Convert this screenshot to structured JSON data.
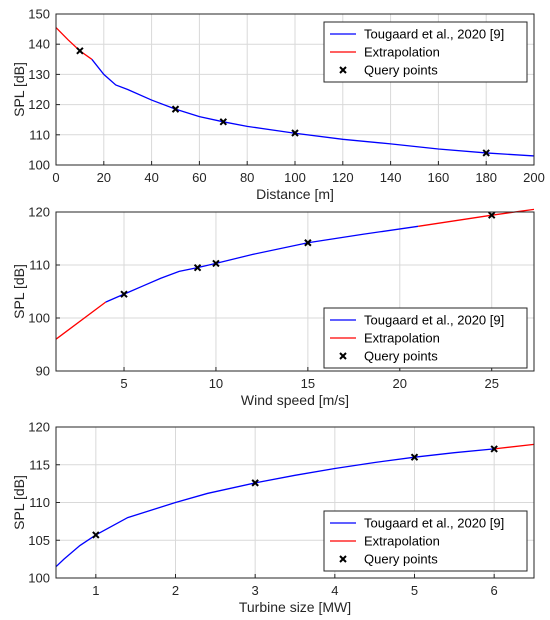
{
  "legend_labels": {
    "model": "Tougaard et al., 2020 [9]",
    "extrapolation": "Extrapolation",
    "query": "Query points"
  },
  "colors": {
    "model": "#0000ff",
    "extrapolation": "#ff0000",
    "query": "#000000"
  },
  "chart_data": [
    {
      "type": "line",
      "xlabel": "Distance [m]",
      "ylabel": "SPL [dB]",
      "xlim": [
        0,
        200
      ],
      "ylim": [
        100,
        150
      ],
      "xticks": [
        0,
        20,
        40,
        60,
        80,
        100,
        120,
        140,
        160,
        180,
        200
      ],
      "yticks": [
        100,
        110,
        120,
        130,
        140,
        150
      ],
      "grid": true,
      "legend_position": "top-right",
      "series": [
        {
          "name": "Tougaard et al., 2020 [9]",
          "kind": "line",
          "color": "#0000ff",
          "x": [
            15,
            20,
            25,
            30,
            40,
            50,
            60,
            70,
            80,
            100,
            120,
            140,
            160,
            180,
            200
          ],
          "y": [
            135,
            130,
            126.5,
            125,
            121.5,
            118.5,
            116,
            114.3,
            112.8,
            110.5,
            108.5,
            107,
            105.3,
            104,
            103
          ]
        },
        {
          "name": "Extrapolation",
          "kind": "line",
          "color": "#ff0000",
          "x": [
            0,
            5,
            10,
            15
          ],
          "y": [
            145.5,
            141.5,
            137.8,
            135
          ]
        },
        {
          "name": "Query points",
          "kind": "marker",
          "color": "#000000",
          "x": [
            10,
            50,
            70,
            100,
            180
          ],
          "y": [
            137.8,
            118.5,
            114.3,
            110.6,
            104
          ]
        }
      ]
    },
    {
      "type": "line",
      "xlabel": "Wind speed [m/s]",
      "ylabel": "SPL [dB]",
      "xlim": [
        1.3,
        27.3
      ],
      "ylim": [
        90,
        120
      ],
      "xticks": [
        5,
        10,
        15,
        20,
        25
      ],
      "yticks": [
        90,
        100,
        110,
        120
      ],
      "grid": true,
      "legend_position": "bottom-right",
      "series": [
        {
          "name": "Tougaard et al., 2020 [9]",
          "kind": "line",
          "color": "#0000ff",
          "x": [
            4,
            5,
            6,
            7,
            8,
            9,
            10,
            12,
            15,
            18,
            21
          ],
          "y": [
            103,
            104.5,
            106,
            107.5,
            108.8,
            109.5,
            110.3,
            112,
            114.2,
            115.8,
            117.3
          ]
        },
        {
          "name": "Extrapolation",
          "kind": "line",
          "color": "#ff0000",
          "x": [
            1.3,
            4
          ],
          "y": [
            96,
            103
          ]
        },
        {
          "name": "Extrapolation",
          "kind": "line",
          "color": "#ff0000",
          "x": [
            21,
            25,
            27.3
          ],
          "y": [
            117.3,
            119.4,
            120.5
          ]
        },
        {
          "name": "Query points",
          "kind": "marker",
          "color": "#000000",
          "x": [
            5,
            9,
            10,
            15,
            25
          ],
          "y": [
            104.5,
            109.5,
            110.3,
            114.2,
            119.4
          ]
        }
      ]
    },
    {
      "type": "line",
      "xlabel": "Turbine size [MW]",
      "ylabel": "SPL [dB]",
      "xlim": [
        0.5,
        6.5
      ],
      "ylim": [
        100,
        120
      ],
      "xticks": [
        1,
        2,
        3,
        4,
        5,
        6
      ],
      "yticks": [
        100,
        105,
        110,
        115,
        120
      ],
      "grid": true,
      "legend_position": "bottom-right",
      "series": [
        {
          "name": "Tougaard et al., 2020 [9]",
          "kind": "line",
          "color": "#0000ff",
          "x": [
            0.5,
            0.6,
            0.8,
            1.0,
            1.4,
            2.0,
            2.4,
            3.0,
            3.5,
            4.0,
            4.5,
            5.0,
            5.5,
            6.0
          ],
          "y": [
            101.5,
            102.5,
            104.3,
            105.7,
            108,
            110,
            111.2,
            112.6,
            113.6,
            114.5,
            115.3,
            116,
            116.6,
            117.1
          ]
        },
        {
          "name": "Extrapolation",
          "kind": "line",
          "color": "#ff0000",
          "x": [
            6.0,
            6.5
          ],
          "y": [
            117.1,
            117.7
          ]
        },
        {
          "name": "Query points",
          "kind": "marker",
          "color": "#000000",
          "x": [
            1,
            3,
            5,
            6
          ],
          "y": [
            105.7,
            112.6,
            116,
            117.1
          ]
        }
      ]
    }
  ]
}
